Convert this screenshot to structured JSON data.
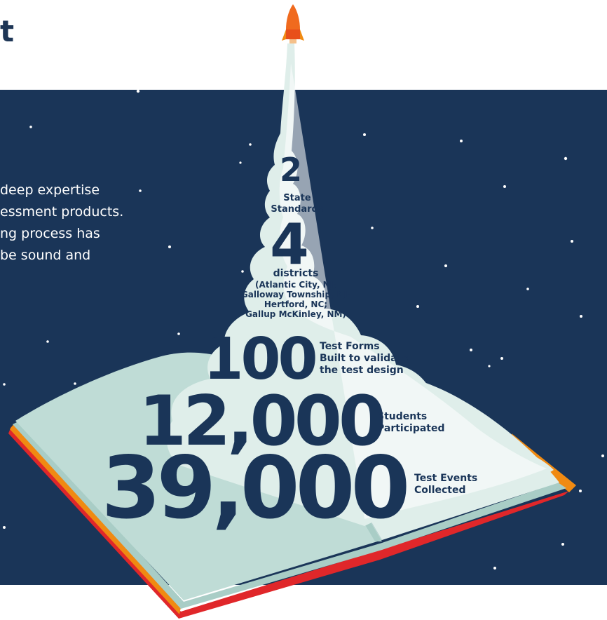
{
  "title": "t",
  "intro_lines": [
    "deep expertise",
    "essment products.",
    "ng process has",
    "be sound and"
  ],
  "colors": {
    "navy": "#1a3558",
    "cloud": "#dfeeea",
    "book_shadow": "#a9cdc6",
    "cover_red": "#e0272a",
    "cover_orange": "#f08a12",
    "rocket_orange": "#f06a1e"
  },
  "icons": [
    "rocket-icon",
    "open-book-illustration",
    "smoke-trail-illustration"
  ],
  "stats": [
    {
      "value": "2",
      "label_lines": [
        "State",
        "Standards"
      ]
    },
    {
      "value": "4",
      "label_lines": [
        "districts",
        "(Atlantic City, NJ;",
        "Galloway Township, NJ;",
        "Hertford, NC;",
        "Gallup McKinley, NM)"
      ]
    },
    {
      "value": "100",
      "label_lines": [
        "Test Forms",
        "Built to validate",
        "the test design"
      ]
    },
    {
      "value": "12,000",
      "label_lines": [
        "Students",
        "Participated"
      ]
    },
    {
      "value": "39,000",
      "label_lines": [
        "Test Events",
        "Collected"
      ]
    }
  ]
}
